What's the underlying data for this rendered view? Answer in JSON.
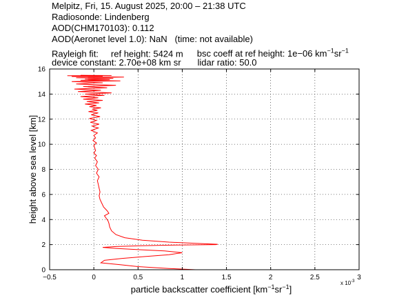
{
  "header": {
    "line1": "Melpitz, Fri, 15. August 2025, 20:00 – 21:38 UTC",
    "line2": "Radiosonde: Lindenberg",
    "line3": "AOD(CHM170103): 0.112",
    "line4": "AOD(Aeronet level 1.0): NaN   (time: not available)",
    "rayleigh_label": "Rayleigh fit:",
    "ref_height": "ref height: 5424 m",
    "bsc_coeff_prefix": "bsc coeff at ref height: 1e−06 km",
    "bsc_coeff_unit_mid": "sr",
    "device_constant": "device constant: 2.70e+08 km sr",
    "lidar_ratio": "lidar ratio: 50.0"
  },
  "chart_data": {
    "type": "line",
    "xlabel_main": "particle backscatter coefficient [km",
    "xlabel_mid": "sr",
    "xlabel_end": "]",
    "ylabel": "height above sea level [km]",
    "x_multiplier_label": "x 10",
    "x_multiplier_exp": "-3",
    "sup_minus1": "−1",
    "xlim": [
      -0.5,
      3
    ],
    "ylim": [
      0,
      16
    ],
    "xticks": [
      "−0.5",
      "0",
      "0.5",
      "1",
      "1.5",
      "2",
      "2.5",
      "3"
    ],
    "xtick_values": [
      -0.5,
      0,
      0.5,
      1,
      1.5,
      2,
      2.5,
      3
    ],
    "yticks": [
      "0",
      "2",
      "4",
      "6",
      "8",
      "10",
      "12",
      "14",
      "16"
    ],
    "ytick_values": [
      0,
      2,
      4,
      6,
      8,
      10,
      12,
      14,
      16
    ],
    "grid": true,
    "series": [
      {
        "color": "#ff0000",
        "x": [
          1.15,
          0.85,
          0.5,
          0.3,
          0.08,
          0.12,
          0.32,
          0.58,
          0.85,
          1.0,
          0.8,
          0.5,
          0.25,
          0.1,
          0.25,
          0.5,
          0.8,
          1.1,
          1.38,
          1.4,
          1.15,
          0.85,
          0.55,
          0.35,
          0.25,
          0.2,
          0.18,
          0.17,
          0.16,
          0.14,
          0.12,
          0.17,
          0.15,
          0.11,
          0.09,
          0.07,
          0.06,
          0.07,
          0.06,
          0.05,
          0.04,
          0.06,
          0.03,
          0.05,
          0.02,
          0.04,
          0.01,
          0.03,
          0.0,
          0.02,
          0.01,
          0.0,
          0.03,
          -0.01,
          0.02,
          0.0,
          0.04,
          -0.03,
          0.05,
          -0.02,
          0.06,
          -0.04,
          0.03,
          -0.05,
          0.07,
          -0.03,
          0.05,
          -0.06,
          0.04,
          -0.02,
          0.08,
          -0.05,
          0.03,
          -0.1,
          0.06,
          -0.08,
          0.1,
          -0.12,
          0.05,
          -0.15,
          0.12,
          -0.1,
          0.2,
          -0.18,
          0.08,
          -0.22,
          0.15,
          -0.12,
          0.25,
          -0.2,
          0.1,
          -0.25,
          0.3,
          -0.15,
          0.18,
          -0.1,
          0.22,
          -0.2,
          0.34,
          -0.25,
          0.1,
          -0.3,
          0.2,
          -0.15
        ],
        "y": [
          0.0,
          0.1,
          0.25,
          0.4,
          0.55,
          0.75,
          0.9,
          1.05,
          1.2,
          1.35,
          1.5,
          1.6,
          1.7,
          1.78,
          1.85,
          1.9,
          1.95,
          1.98,
          2.0,
          2.03,
          2.1,
          2.2,
          2.35,
          2.55,
          2.8,
          3.1,
          3.4,
          3.7,
          3.9,
          4.1,
          4.3,
          4.5,
          4.7,
          5.0,
          5.3,
          5.6,
          5.9,
          6.2,
          6.5,
          6.8,
          7.1,
          7.4,
          7.7,
          8.0,
          8.3,
          8.6,
          8.9,
          9.1,
          9.3,
          9.5,
          9.7,
          9.9,
          10.1,
          10.3,
          10.5,
          10.7,
          10.9,
          11.1,
          11.3,
          11.45,
          11.6,
          11.75,
          11.9,
          12.05,
          12.2,
          12.35,
          12.5,
          12.6,
          12.7,
          12.8,
          12.9,
          13.0,
          13.1,
          13.2,
          13.3,
          13.4,
          13.5,
          13.6,
          13.7,
          13.8,
          13.9,
          14.0,
          14.1,
          14.2,
          14.3,
          14.4,
          14.5,
          14.6,
          14.7,
          14.8,
          14.9,
          15.0,
          15.05,
          15.1,
          15.15,
          15.2,
          15.25,
          15.3,
          15.35,
          15.4,
          15.43,
          15.46,
          15.48,
          15.5
        ]
      }
    ]
  }
}
